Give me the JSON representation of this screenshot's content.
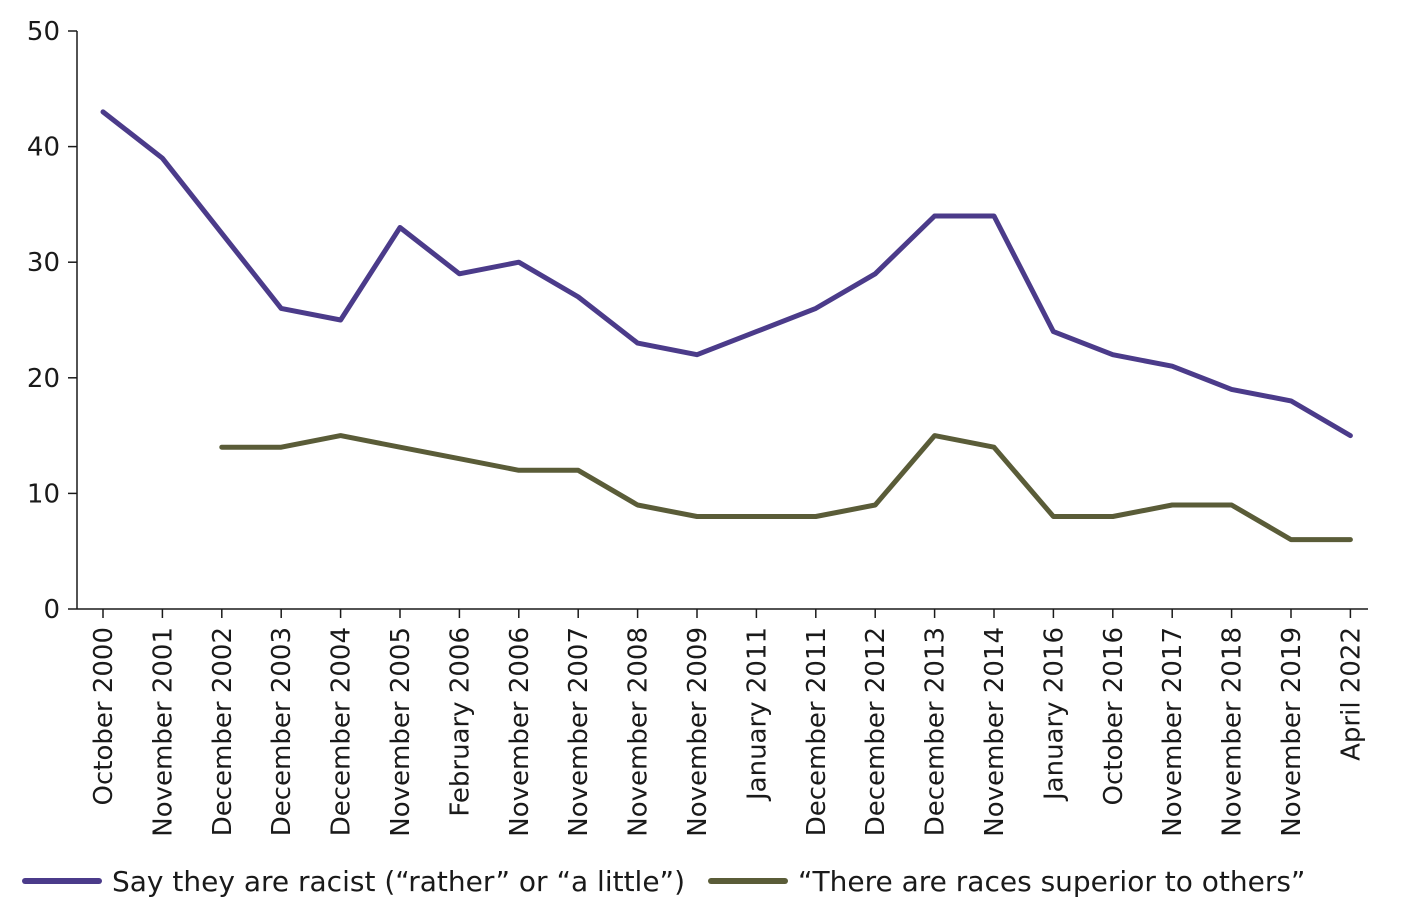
{
  "chart_data": {
    "type": "line",
    "categories": [
      "October 2000",
      "November 2001",
      "December 2002",
      "December 2003",
      "December 2004",
      "November 2005",
      "February 2006",
      "November 2006",
      "November 2007",
      "November 2008",
      "November 2009",
      "January 2011",
      "December 2011",
      "December 2012",
      "December 2013",
      "November 2014",
      "January 2016",
      "October 2016",
      "November 2017",
      "November 2018",
      "November 2019",
      "April 2022"
    ],
    "series": [
      {
        "name": "Say they are racist (“rather” or “a little”)",
        "color": "#4b3b8a",
        "values": [
          43,
          39,
          32.5,
          26,
          25,
          33,
          29,
          30,
          27,
          23,
          22,
          24,
          26,
          29,
          34,
          34,
          24,
          22,
          21,
          19,
          18,
          15
        ]
      },
      {
        "name": "“There are races superior to others”",
        "color": "#5a5c38",
        "values": [
          null,
          null,
          14,
          14,
          15,
          14,
          13,
          12,
          12,
          9,
          8,
          8,
          8,
          9,
          15,
          14,
          8,
          8,
          9,
          9,
          6,
          6
        ]
      }
    ],
    "yticks": [
      0,
      10,
      20,
      30,
      40,
      50
    ],
    "ylim": [
      0,
      50
    ],
    "grid": false,
    "legend_position": "bottom"
  }
}
